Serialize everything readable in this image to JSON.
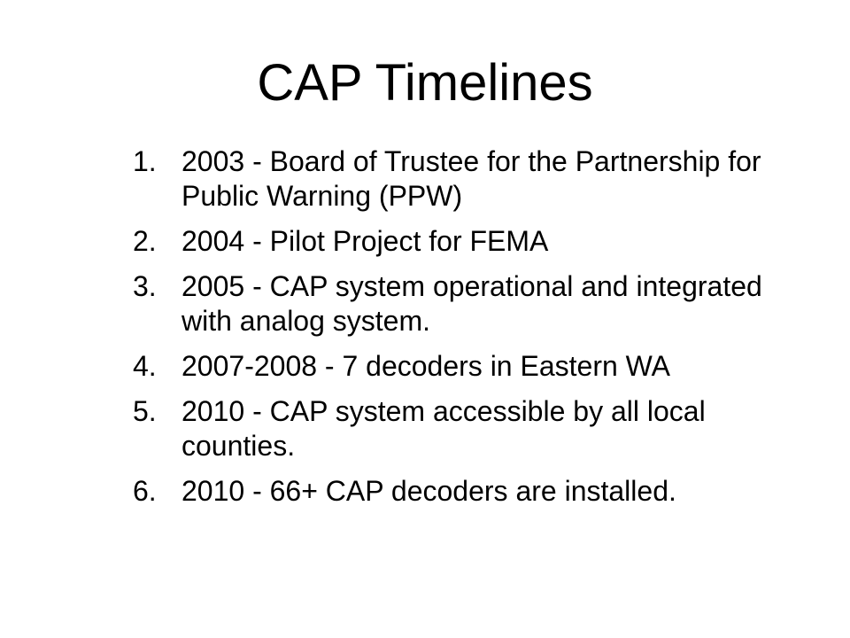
{
  "slide": {
    "title": "CAP Timelines",
    "items": [
      {
        "number": "1.",
        "text": "2003 - Board of Trustee for the Partnership for Public Warning (PPW)"
      },
      {
        "number": "2.",
        "text": "2004 - Pilot Project for FEMA"
      },
      {
        "number": "3.",
        "text": "2005 - CAP system operational and integrated with analog system."
      },
      {
        "number": "4.",
        "text": "2007-2008 - 7 decoders in Eastern WA"
      },
      {
        "number": "5.",
        "text": "2010 - CAP system accessible by all local counties."
      },
      {
        "number": "6.",
        "text": "2010 - 66+ CAP decoders are installed."
      }
    ]
  }
}
